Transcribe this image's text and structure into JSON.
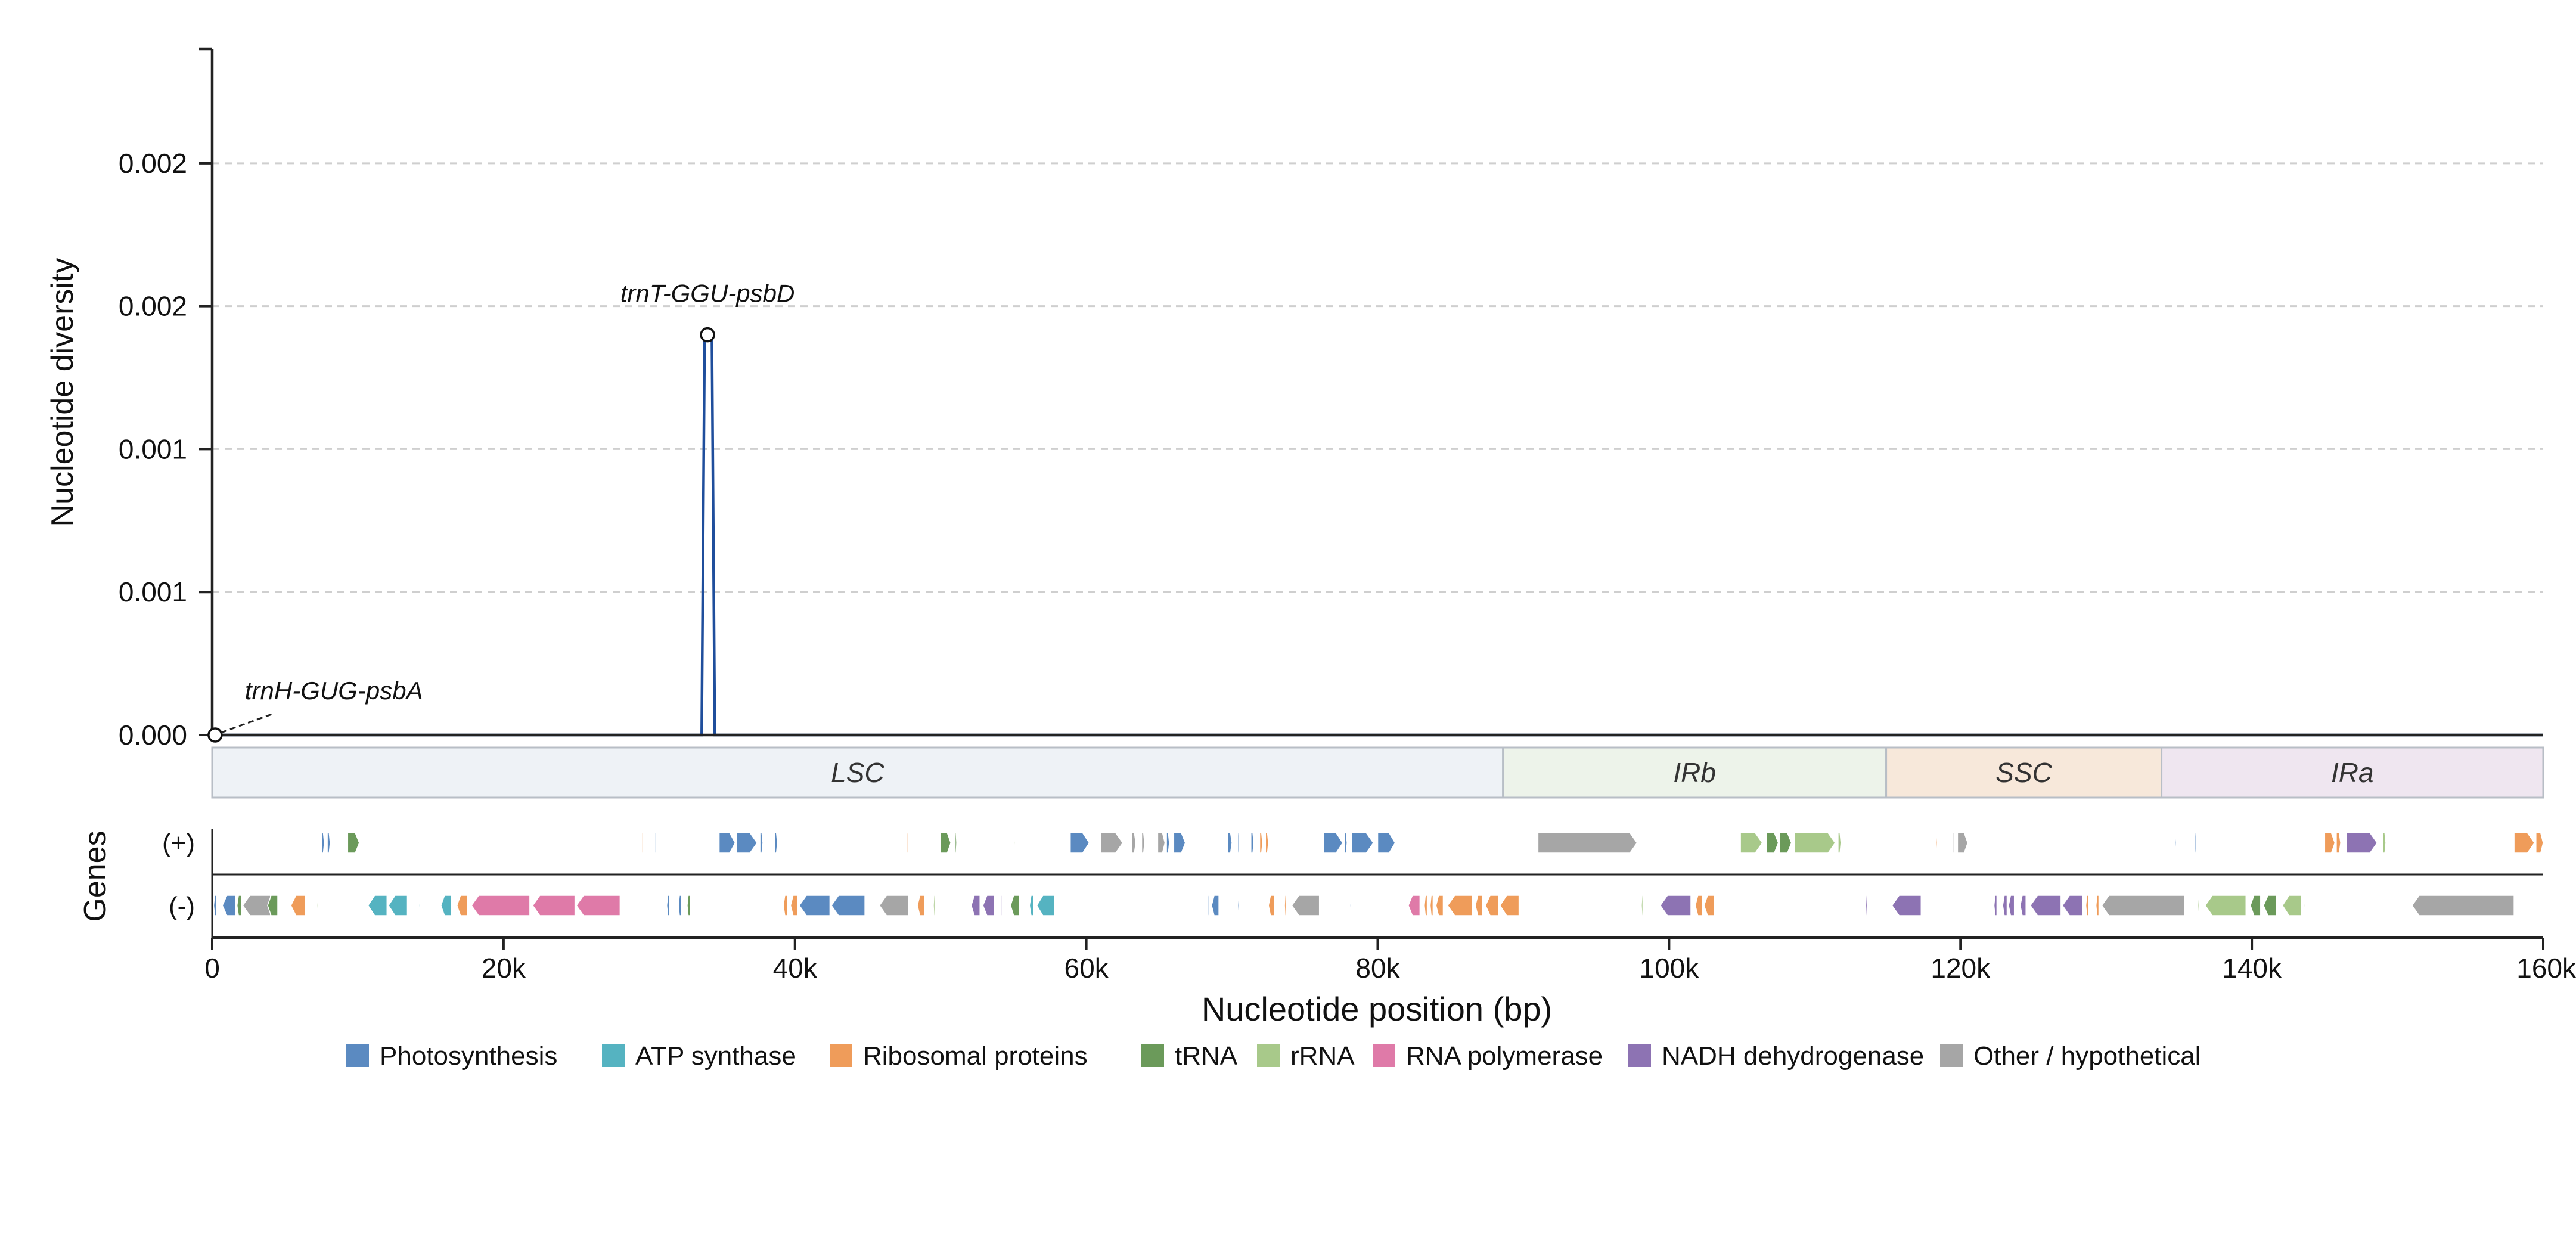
{
  "chart_data": {
    "type": "line",
    "ylabel": "Nucleotide diversity",
    "xlabel": "Nucleotide position (bp)",
    "ylim": [
      0,
      0.0024
    ],
    "xlim": [
      0,
      160000
    ],
    "y_ticks": [
      {
        "value": 0.0,
        "label": "0.000"
      },
      {
        "value": 0.0005,
        "label": "0.001"
      },
      {
        "value": 0.001,
        "label": "0.001"
      },
      {
        "value": 0.0015,
        "label": "0.002"
      },
      {
        "value": 0.002,
        "label": "0.002"
      }
    ],
    "x_ticks": [
      {
        "value": 0,
        "label": "0"
      },
      {
        "value": 20000,
        "label": "20k"
      },
      {
        "value": 40000,
        "label": "40k"
      },
      {
        "value": 60000,
        "label": "60k"
      },
      {
        "value": 80000,
        "label": "80k"
      },
      {
        "value": 100000,
        "label": "100k"
      },
      {
        "value": 120000,
        "label": "120k"
      },
      {
        "value": 140000,
        "label": "140k"
      },
      {
        "value": 160000,
        "label": "160k"
      }
    ],
    "grid": "horizontal-dashed",
    "line_color": "#1f4e9c",
    "series": [
      {
        "points": [
          [
            0,
            0
          ],
          [
            33600,
            0
          ],
          [
            33800,
            0.0014
          ],
          [
            34300,
            0.0014
          ],
          [
            34500,
            0
          ],
          [
            160000,
            0
          ]
        ]
      }
    ],
    "annotations": [
      {
        "text": "trnT-GGU-psbD",
        "x": 34000,
        "y": 0.0014
      },
      {
        "text": "trnH-GUG-psbA",
        "x": 200,
        "y": 0.0
      }
    ],
    "regions": [
      {
        "label": "LSC",
        "start": 0,
        "end": 88600,
        "color": "#eef2f6"
      },
      {
        "label": "IRb",
        "start": 88600,
        "end": 114900,
        "color": "#edf3ea"
      },
      {
        "label": "SSC",
        "start": 114900,
        "end": 133800,
        "color": "#f7e8da"
      },
      {
        "label": "IRa",
        "start": 133800,
        "end": 160000,
        "color": "#efe6f0"
      }
    ],
    "genes_axis_label": "Genes",
    "strand_labels": [
      "(+)",
      "(-)"
    ],
    "legend": [
      {
        "name": "Photosynthesis",
        "color": "#5b8ac1"
      },
      {
        "name": "ATP synthase",
        "color": "#55b3c1"
      },
      {
        "name": "Ribosomal proteins",
        "color": "#ef9c5a"
      },
      {
        "name": "tRNA",
        "color": "#6b9a5a"
      },
      {
        "name": "rRNA",
        "color": "#a8c98a"
      },
      {
        "name": "RNA polymerase",
        "color": "#df7aa8"
      },
      {
        "name": "NADH dehydrogenase",
        "color": "#8d73b3"
      },
      {
        "name": "Other / hypothetical",
        "color": "#a6a6a6"
      }
    ],
    "legend_position": "bottom",
    "genes": {
      "plus": [
        [
          7500,
          7700,
          0
        ],
        [
          7900,
          8100,
          0
        ],
        [
          9300,
          10100,
          3
        ],
        [
          29500,
          29600,
          2
        ],
        [
          30400,
          30500,
          0
        ],
        [
          34800,
          35900,
          0
        ],
        [
          36000,
          37400,
          0
        ],
        [
          37600,
          37800,
          0
        ],
        [
          38600,
          38800,
          0
        ],
        [
          47700,
          47800,
          2
        ],
        [
          50000,
          50700,
          3
        ],
        [
          51000,
          51100,
          3
        ],
        [
          55000,
          55100,
          4
        ],
        [
          58900,
          60200,
          0
        ],
        [
          61000,
          62500,
          7
        ],
        [
          63100,
          63400,
          7
        ],
        [
          63800,
          64000,
          7
        ],
        [
          64900,
          65400,
          7
        ],
        [
          65500,
          65700,
          0
        ],
        [
          66000,
          66800,
          0
        ],
        [
          69700,
          70000,
          0
        ],
        [
          70400,
          70500,
          0
        ],
        [
          71300,
          71500,
          0
        ],
        [
          71900,
          72100,
          2
        ],
        [
          72300,
          72500,
          2
        ],
        [
          76300,
          77600,
          0
        ],
        [
          77700,
          77900,
          0
        ],
        [
          78200,
          79700,
          0
        ],
        [
          80000,
          81200,
          0
        ],
        [
          91000,
          97800,
          7
        ],
        [
          104900,
          106400,
          4
        ],
        [
          106700,
          107500,
          3
        ],
        [
          107600,
          108400,
          3
        ],
        [
          108600,
          111400,
          4
        ],
        [
          111600,
          111800,
          4
        ],
        [
          118300,
          118400,
          2
        ],
        [
          119500,
          119600,
          7
        ],
        [
          119800,
          120500,
          7
        ],
        [
          134700,
          134800,
          0
        ],
        [
          136100,
          136200,
          0
        ],
        [
          145000,
          145700,
          2
        ],
        [
          145800,
          146100,
          2
        ],
        [
          146500,
          148600,
          6
        ],
        [
          149000,
          149200,
          4
        ],
        [
          158000,
          159400,
          2
        ],
        [
          159500,
          160000,
          2
        ]
      ],
      "minus": [
        [
          100,
          300,
          0
        ],
        [
          700,
          1600,
          0
        ],
        [
          1700,
          2000,
          3
        ],
        [
          2100,
          4000,
          7
        ],
        [
          3800,
          4500,
          3
        ],
        [
          5400,
          6400,
          2
        ],
        [
          7200,
          7300,
          4
        ],
        [
          10700,
          12000,
          1
        ],
        [
          12100,
          13400,
          1
        ],
        [
          14200,
          14300,
          1
        ],
        [
          15700,
          16400,
          1
        ],
        [
          16800,
          17500,
          2
        ],
        [
          17800,
          21800,
          5
        ],
        [
          22000,
          24900,
          5
        ],
        [
          25000,
          28000,
          5
        ],
        [
          31200,
          31400,
          0
        ],
        [
          32000,
          32200,
          0
        ],
        [
          32600,
          32800,
          3
        ],
        [
          39200,
          39500,
          2
        ],
        [
          39700,
          40200,
          2
        ],
        [
          40300,
          42400,
          0
        ],
        [
          42500,
          44800,
          0
        ],
        [
          45800,
          47800,
          7
        ],
        [
          48400,
          48900,
          2
        ],
        [
          49500,
          49600,
          4
        ],
        [
          52100,
          52700,
          6
        ],
        [
          52900,
          53700,
          6
        ],
        [
          54100,
          54200,
          6
        ],
        [
          54800,
          55400,
          3
        ],
        [
          56100,
          56400,
          1
        ],
        [
          56600,
          57800,
          1
        ],
        [
          68300,
          68400,
          0
        ],
        [
          68600,
          69100,
          0
        ],
        [
          70400,
          70500,
          0
        ],
        [
          72500,
          72900,
          2
        ],
        [
          73600,
          73700,
          2
        ],
        [
          74100,
          76000,
          7
        ],
        [
          78100,
          78200,
          0
        ],
        [
          82100,
          82900,
          5
        ],
        [
          83200,
          83400,
          2
        ],
        [
          83600,
          83800,
          2
        ],
        [
          84000,
          84500,
          2
        ],
        [
          84800,
          86500,
          2
        ],
        [
          86700,
          87200,
          2
        ],
        [
          87400,
          88300,
          2
        ],
        [
          88400,
          89700,
          2
        ],
        [
          98100,
          98200,
          4
        ],
        [
          99400,
          101500,
          6
        ],
        [
          101800,
          102300,
          2
        ],
        [
          102400,
          103100,
          2
        ],
        [
          113500,
          113600,
          6
        ],
        [
          115300,
          117300,
          6
        ],
        [
          122300,
          122500,
          6
        ],
        [
          122900,
          123200,
          6
        ],
        [
          123300,
          123700,
          6
        ],
        [
          124100,
          124500,
          6
        ],
        [
          124800,
          126900,
          6
        ],
        [
          127000,
          128400,
          6
        ],
        [
          128600,
          128800,
          2
        ],
        [
          129300,
          129500,
          2
        ],
        [
          129700,
          135400,
          7
        ],
        [
          136300,
          136400,
          4
        ],
        [
          136800,
          139600,
          4
        ],
        [
          139900,
          140600,
          3
        ],
        [
          140800,
          141700,
          3
        ],
        [
          142100,
          143400,
          4
        ],
        [
          143600,
          143700,
          4
        ],
        [
          151000,
          158000,
          7
        ]
      ]
    }
  }
}
